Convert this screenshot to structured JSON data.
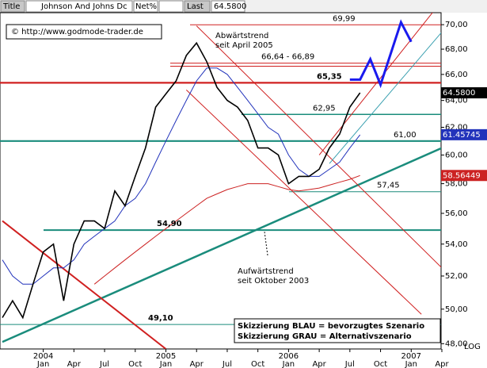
{
  "header": {
    "title": "Title",
    "name": "Johnson And Johns Dc",
    "net": "Net%",
    "last_label": "Last",
    "last": "64.5800"
  },
  "chart_data": {
    "type": "line",
    "log_scale": true,
    "copyright": "© http://www.godmode-trader.de",
    "x": [
      "2003-09",
      "2003-10",
      "2003-11",
      "2003-12",
      "2004-01",
      "2004-02",
      "2004-03",
      "2004-04",
      "2004-05",
      "2004-06",
      "2004-07",
      "2004-08",
      "2004-09",
      "2004-10",
      "2004-11",
      "2004-12",
      "2005-01",
      "2005-02",
      "2005-03",
      "2005-04",
      "2005-05",
      "2005-06",
      "2005-07",
      "2005-08",
      "2005-09",
      "2005-10",
      "2005-11",
      "2005-12",
      "2006-01",
      "2006-02",
      "2006-03",
      "2006-04",
      "2006-05",
      "2006-06",
      "2006-07",
      "2006-08"
    ],
    "series": [
      {
        "color": "#000000",
        "values": [
          49.5,
          50.5,
          49.5,
          51.5,
          53.5,
          54,
          50.5,
          54,
          55.5,
          55.5,
          55,
          57.5,
          56.5,
          58.5,
          60.5,
          63.5,
          64.5,
          65.5,
          67.5,
          68.5,
          67,
          65,
          64,
          63.5,
          62.5,
          60.5,
          60.5,
          60,
          58,
          58.5,
          58.5,
          59,
          60.5,
          61.5,
          63.5,
          64.58
        ]
      },
      {
        "color": "#2233bb",
        "values": [
          53,
          52,
          51.5,
          51.5,
          52,
          52.5,
          52.5,
          53,
          54,
          54.5,
          55,
          55.5,
          56.5,
          57,
          58,
          59.5,
          61,
          62.5,
          64,
          65.5,
          66.5,
          66.5,
          66,
          65,
          64,
          63,
          62,
          61.5,
          60,
          59,
          58.5,
          58.5,
          59,
          59.5,
          60.5,
          61.45745
        ]
      },
      {
        "color": "#cc2222",
        "values": [
          null,
          null,
          null,
          null,
          null,
          null,
          null,
          null,
          null,
          51.5,
          52,
          52.5,
          53,
          53.5,
          54,
          54.5,
          55,
          55.5,
          56,
          56.5,
          57,
          57.3,
          57.6,
          57.8,
          58,
          58,
          58,
          57.8,
          57.6,
          57.5,
          57.6,
          57.7,
          57.9,
          58.1,
          58.3,
          58.56449
        ]
      }
    ],
    "xlim": [
      "2003-09",
      "2007-04"
    ],
    "ylim": [
      47.7,
      71.0
    ],
    "yticks": [
      {
        "value": 48,
        "label": "48,00"
      },
      {
        "value": 50,
        "label": "50,00"
      },
      {
        "value": 52,
        "label": "52,00"
      },
      {
        "value": 54,
        "label": "54,00"
      },
      {
        "value": 56,
        "label": "56,00"
      },
      {
        "value": 58,
        "label": "58,00"
      },
      {
        "value": 60,
        "label": "60,00"
      },
      {
        "value": 62,
        "label": "62,00"
      },
      {
        "value": 64,
        "label": "64,00"
      },
      {
        "value": 66,
        "label": "66,00"
      },
      {
        "value": 68,
        "label": "68,00"
      },
      {
        "value": 70,
        "label": "70,00"
      }
    ],
    "xticks": [
      {
        "value": "2004-01",
        "label": "Jan"
      },
      {
        "value": "2004-04",
        "label": "Apr"
      },
      {
        "value": "2004-07",
        "label": "Jul"
      },
      {
        "value": "2004-10",
        "label": "Oct"
      },
      {
        "value": "2005-01",
        "label": "Jan"
      },
      {
        "value": "2005-04",
        "label": "Apr"
      },
      {
        "value": "2005-07",
        "label": "Jul"
      },
      {
        "value": "2005-10",
        "label": "Oct"
      },
      {
        "value": "2006-01",
        "label": "Jan"
      },
      {
        "value": "2006-04",
        "label": "Apr"
      },
      {
        "value": "2006-07",
        "label": "Jul"
      },
      {
        "value": "2006-10",
        "label": "Oct"
      },
      {
        "value": "2007-01",
        "label": "Jan"
      },
      {
        "value": "2007-04",
        "label": "Apr"
      }
    ],
    "xyears": [
      {
        "value": "2004-01",
        "label": "2004"
      },
      {
        "value": "2005-01",
        "label": "2005"
      },
      {
        "value": "2006-01",
        "label": "2006"
      },
      {
        "value": "2007-01",
        "label": "2007"
      }
    ],
    "levels": [
      {
        "value": 69.99,
        "label": "69,99",
        "color": "#d02020"
      },
      {
        "values": [
          66.64,
          66.89
        ],
        "label": "66,64 - 66,89",
        "color": "#d02020"
      },
      {
        "value": 65.35,
        "label": "65,35",
        "color": "#d02020"
      },
      {
        "value": 62.95,
        "label": "62,95",
        "color": "#1a8c7c"
      },
      {
        "value": 61.0,
        "label": "61,00",
        "color": "#1a8c7c"
      },
      {
        "value": 57.45,
        "label": "57,45",
        "color": "#1a8c7c"
      },
      {
        "value": 54.9,
        "label": "54,90",
        "color": "#1a8c7c"
      },
      {
        "value": 49.1,
        "label": "49,10",
        "color": "#1a8c7c"
      }
    ],
    "trendlines": [
      {
        "x": [
          "2003-09",
          "2007-04"
        ],
        "values": [
          48.1,
          60.5
        ],
        "color": "#1a8c7c"
      },
      {
        "x": [
          "2005-04",
          "2007-04"
        ],
        "values": [
          69.9,
          52.5
        ],
        "color": "#d02020"
      },
      {
        "x": [
          "2005-03",
          "2007-02"
        ],
        "values": [
          64.8,
          49.7
        ],
        "color": "#d02020"
      },
      {
        "x": [
          "2003-09",
          "2005-01"
        ],
        "values": [
          55.5,
          47.7
        ],
        "color": "#d02020"
      },
      {
        "x": [
          "2006-04",
          "2007-04"
        ],
        "values": [
          60,
          72
        ],
        "color": "#d02020"
      },
      {
        "x": [
          "2006-05",
          "2007-04"
        ],
        "values": [
          59.4,
          69.4
        ],
        "color": "#3aa0b0"
      }
    ],
    "scenario": {
      "color": "#1a1aee",
      "x": [
        "2006-07",
        "2006-08",
        "2006-09",
        "2006-10",
        "2006-12",
        "2007-01"
      ],
      "values": [
        65.6,
        65.6,
        67.2,
        65.2,
        70.2,
        68.6
      ]
    },
    "tags": [
      {
        "value": 64.58,
        "label": "64.5800",
        "color": "#000000"
      },
      {
        "value": 61.45745,
        "label": "61.45745",
        "color": "#2233bb"
      },
      {
        "value": 58.56449,
        "label": "58.56449",
        "color": "#cc2222"
      }
    ],
    "annotations": [
      {
        "lines": [
          "Abwärtstrend",
          "seit April 2005"
        ]
      },
      {
        "lines": [
          "Aufwärtstrend",
          "seit Oktober 2003"
        ]
      }
    ],
    "legend_box": [
      "Skizzierung BLAU = bevorzugtes Szenario",
      "Skizzierung GRAU = Alternativszenario"
    ],
    "log_label": "LOG"
  }
}
